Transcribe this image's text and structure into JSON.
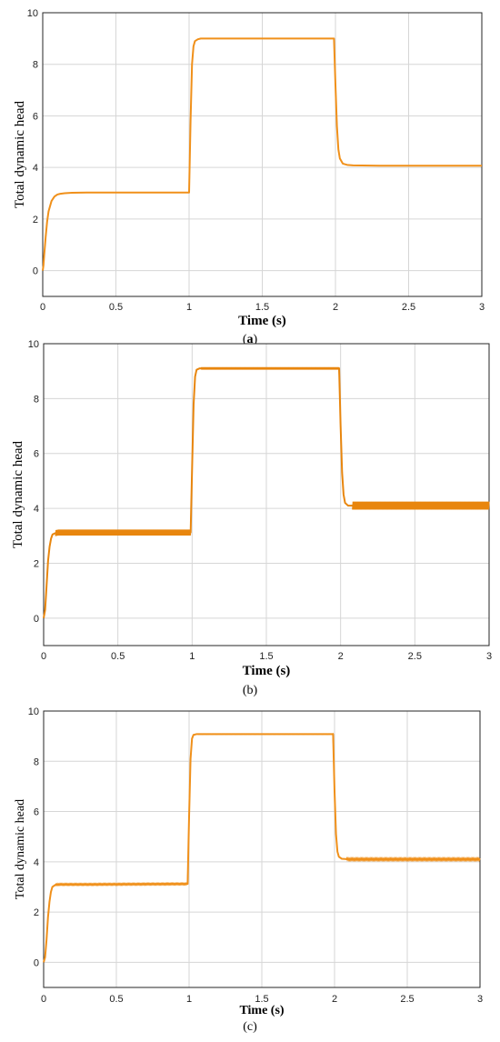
{
  "chart_data": [
    {
      "type": "line",
      "panel": "(a)",
      "xlabel": "Time (s)",
      "ylabel": "Total dynamic head",
      "xlim": [
        0,
        3
      ],
      "ylim": [
        -1,
        10
      ],
      "x_ticks": [
        "0",
        "0.5",
        "1",
        "1.5",
        "2",
        "2.5",
        "3"
      ],
      "y_ticks": [
        "0",
        "2",
        "4",
        "6",
        "8",
        "10"
      ],
      "grid": true,
      "color": "#f0901a",
      "series": [
        {
          "x": [
            0,
            0.005,
            0.01,
            0.02,
            0.03,
            0.04,
            0.06,
            0.08,
            0.1,
            0.12,
            0.15,
            0.2,
            0.3,
            1.0,
            1.01,
            1.02,
            1.03,
            1.04,
            1.06,
            1.08,
            1.1,
            1.3,
            1.99,
            2.0,
            2.01,
            2.02,
            2.03,
            2.05,
            2.08,
            2.12,
            2.3,
            3.0
          ],
          "y": [
            0,
            0.2,
            0.6,
            1.3,
            1.9,
            2.3,
            2.7,
            2.87,
            2.95,
            2.98,
            3.0,
            3.02,
            3.03,
            3.03,
            5.8,
            8.0,
            8.7,
            8.9,
            8.97,
            9.0,
            9.0,
            9.0,
            9.0,
            7.2,
            5.6,
            4.7,
            4.35,
            4.15,
            4.1,
            4.08,
            4.07,
            4.07
          ]
        }
      ]
    },
    {
      "type": "line",
      "panel": "(b)",
      "xlabel": "Time (s)",
      "ylabel": "Total dynamic head",
      "xlim": [
        0,
        3
      ],
      "ylim": [
        -1,
        10
      ],
      "x_ticks": [
        "0",
        "0.5",
        "1",
        "1.5",
        "2",
        "2.5",
        "3"
      ],
      "y_ticks": [
        "0",
        "2",
        "4",
        "6",
        "8",
        "10"
      ],
      "grid": true,
      "color": "#e8860e",
      "series": [
        {
          "x": [
            0,
            0.01,
            0.02,
            0.03,
            0.04,
            0.05,
            0.06,
            0.08,
            0.1,
            0.3,
            0.6,
            0.99,
            1.0,
            1.01,
            1.02,
            1.03,
            1.05,
            1.08,
            1.3,
            1.99,
            2.0,
            2.01,
            2.02,
            2.03,
            2.05,
            2.08,
            2.5,
            3.0
          ],
          "y": [
            0,
            0.3,
            1.2,
            2.1,
            2.6,
            2.9,
            3.05,
            3.1,
            3.12,
            3.12,
            3.12,
            3.12,
            5.5,
            7.8,
            8.8,
            9.05,
            9.1,
            9.1,
            9.1,
            9.1,
            7.0,
            5.3,
            4.5,
            4.2,
            4.1,
            4.1,
            4.1,
            4.1
          ]
        }
      ]
    },
    {
      "type": "line",
      "panel": "(c)",
      "xlabel": "Time (s)",
      "ylabel": "Total dynamic head",
      "xlim": [
        0,
        3
      ],
      "ylim": [
        -1,
        10
      ],
      "x_ticks": [
        "0",
        "0.5",
        "1",
        "1.5",
        "2",
        "2.5",
        "3"
      ],
      "y_ticks": [
        "0",
        "2",
        "4",
        "6",
        "8",
        "10"
      ],
      "grid": true,
      "color": "#f0901a",
      "series": [
        {
          "x": [
            0,
            0.01,
            0.02,
            0.03,
            0.04,
            0.05,
            0.06,
            0.08,
            0.1,
            0.3,
            0.99,
            1.0,
            1.01,
            1.02,
            1.03,
            1.05,
            1.1,
            1.99,
            2.0,
            2.01,
            2.02,
            2.03,
            2.05,
            2.1,
            2.5,
            3.0
          ],
          "y": [
            0,
            0.2,
            0.9,
            1.8,
            2.4,
            2.8,
            3.0,
            3.08,
            3.1,
            3.1,
            3.12,
            5.8,
            8.1,
            8.9,
            9.05,
            9.08,
            9.08,
            9.08,
            6.8,
            5.1,
            4.4,
            4.2,
            4.12,
            4.1,
            4.1,
            4.1
          ]
        }
      ]
    }
  ]
}
